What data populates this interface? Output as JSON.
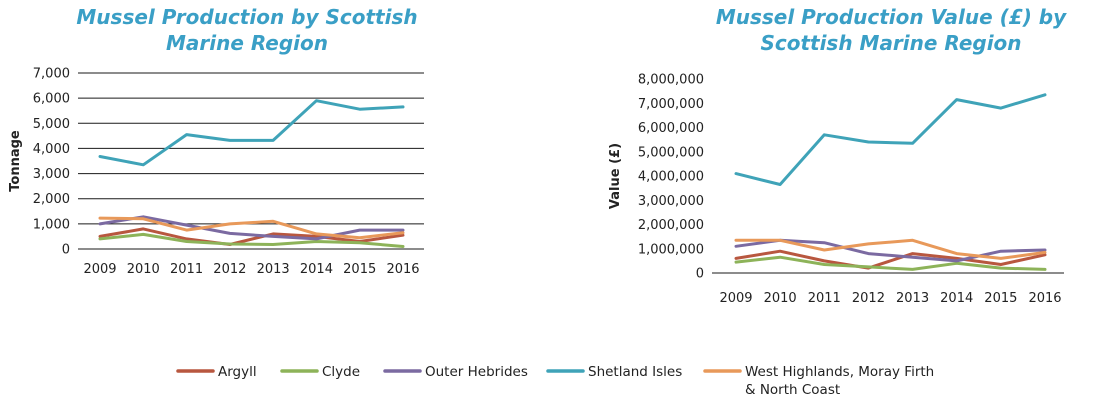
{
  "chart_data": [
    {
      "type": "line",
      "title_lines": [
        "Mussel Production by Scottish",
        "Marine Region"
      ],
      "xlabel": "",
      "ylabel": "Tonnage",
      "x": [
        "2009",
        "2010",
        "2011",
        "2012",
        "2013",
        "2014",
        "2015",
        "2016"
      ],
      "ylim": [
        0,
        7000
      ],
      "yticks": [
        0,
        1000,
        2000,
        3000,
        4000,
        5000,
        6000,
        7000
      ],
      "ytick_labels": [
        "0",
        "1,000",
        "2,000",
        "3,000",
        "4,000",
        "5,000",
        "6,000",
        "7,000"
      ],
      "grid": true,
      "series": [
        {
          "name": "Argyll",
          "color": "#b8573f",
          "values": [
            500,
            800,
            400,
            180,
            600,
            500,
            300,
            550
          ]
        },
        {
          "name": "Clyde",
          "color": "#8db359",
          "values": [
            400,
            580,
            300,
            200,
            180,
            300,
            250,
            100
          ]
        },
        {
          "name": "Outer Hebrides",
          "color": "#7b6aa1",
          "values": [
            1000,
            1280,
            950,
            620,
            500,
            400,
            750,
            750
          ]
        },
        {
          "name": "Shetland Isles",
          "color": "#3fa3b8",
          "values": [
            3680,
            3350,
            4550,
            4320,
            4320,
            5900,
            5560,
            5650
          ]
        },
        {
          "name": "West Highlands, Moray Firth & North Coast",
          "color": "#e8995a",
          "values": [
            1230,
            1200,
            750,
            1000,
            1100,
            600,
            450,
            650
          ]
        }
      ]
    },
    {
      "type": "line",
      "title_lines": [
        "Mussel Production Value (£) by",
        "Scottish Marine Region"
      ],
      "xlabel": "",
      "ylabel": "Value (£)",
      "x": [
        "2009",
        "2010",
        "2011",
        "2012",
        "2013",
        "2014",
        "2015",
        "2016"
      ],
      "ylim": [
        0,
        8000000
      ],
      "yticks": [
        0,
        1000000,
        2000000,
        3000000,
        4000000,
        5000000,
        6000000,
        7000000,
        8000000
      ],
      "ytick_labels": [
        "0",
        "1,000,000",
        "2,000,000",
        "3,000,000",
        "4,000,000",
        "5,000,000",
        "6,000,000",
        "7,000,000",
        "8,000,000"
      ],
      "grid": false,
      "series": [
        {
          "name": "Argyll",
          "color": "#b8573f",
          "values": [
            600000,
            900000,
            500000,
            200000,
            800000,
            600000,
            350000,
            750000
          ]
        },
        {
          "name": "Clyde",
          "color": "#8db359",
          "values": [
            450000,
            650000,
            350000,
            250000,
            150000,
            400000,
            200000,
            150000
          ]
        },
        {
          "name": "Outer Hebrides",
          "color": "#7b6aa1",
          "values": [
            1100000,
            1350000,
            1250000,
            800000,
            650000,
            500000,
            900000,
            950000
          ]
        },
        {
          "name": "Shetland Isles",
          "color": "#3fa3b8",
          "values": [
            4100000,
            3650000,
            5700000,
            5400000,
            5350000,
            7150000,
            6800000,
            7350000
          ]
        },
        {
          "name": "West Highlands, Moray Firth & North Coast",
          "color": "#e8995a",
          "values": [
            1350000,
            1350000,
            950000,
            1200000,
            1350000,
            800000,
            600000,
            850000
          ]
        }
      ]
    }
  ],
  "legend": {
    "placement": "bottom",
    "items": [
      {
        "label_lines": [
          "Argyll"
        ],
        "color": "#b8573f"
      },
      {
        "label_lines": [
          "Clyde"
        ],
        "color": "#8db359"
      },
      {
        "label_lines": [
          "Outer Hebrides"
        ],
        "color": "#7b6aa1"
      },
      {
        "label_lines": [
          "Shetland Isles"
        ],
        "color": "#3fa3b8"
      },
      {
        "label_lines": [
          "West Highlands, Moray Firth",
          "& North Coast"
        ],
        "color": "#e8995a"
      }
    ]
  }
}
